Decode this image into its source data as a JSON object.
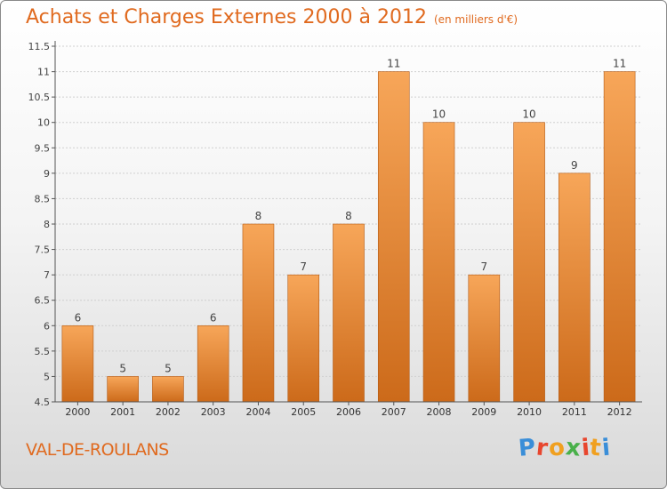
{
  "header": {
    "title": "Achats et Charges Externes 2000 à 2012",
    "subtitle": "(en milliers d'€)"
  },
  "footer": {
    "place": "VAL-DE-ROULANS",
    "logo": "Proxiti"
  },
  "colors": {
    "title": "#e06a1f",
    "bar_light": "#f7a659",
    "bar_dark": "#cc6a1a",
    "logo_letters": [
      "#3a8ed8",
      "#e8462e",
      "#f0a020",
      "#49b04a",
      "#e8462e",
      "#f0a020",
      "#3a8ed8"
    ]
  },
  "chart_data": {
    "type": "bar",
    "categories": [
      "2000",
      "2001",
      "2002",
      "2003",
      "2004",
      "2005",
      "2006",
      "2007",
      "2008",
      "2009",
      "2010",
      "2011",
      "2012"
    ],
    "values": [
      6,
      5,
      5,
      6,
      8,
      7,
      8,
      11,
      10,
      7,
      10,
      9,
      11
    ],
    "data_labels": [
      "6",
      "5",
      "5",
      "6",
      "8",
      "7",
      "8",
      "11",
      "10",
      "7",
      "10",
      "9",
      "11"
    ],
    "ylim": [
      4.5,
      11.5
    ],
    "yticks": [
      4.5,
      5,
      5.5,
      6,
      6.5,
      7,
      7.5,
      8,
      8.5,
      9,
      9.5,
      10,
      10.5,
      11,
      11.5
    ],
    "ytick_labels": [
      "4.5",
      "5",
      "5.5",
      "6",
      "6.5",
      "7",
      "7.5",
      "8",
      "8.5",
      "9",
      "9.5",
      "10",
      "10.5",
      "11",
      "11.5"
    ],
    "grid": true,
    "xlabel": "",
    "ylabel": ""
  }
}
